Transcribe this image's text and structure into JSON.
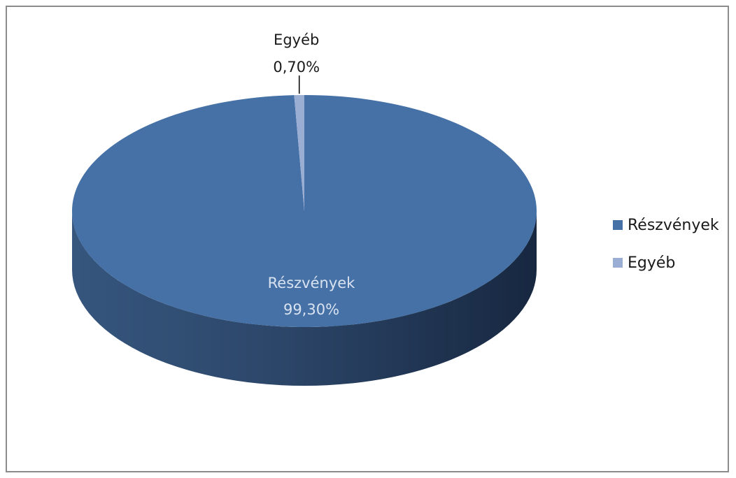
{
  "chart_data": {
    "type": "pie",
    "three_d": true,
    "title": "",
    "slices": [
      {
        "label": "Részvények",
        "value": 99.3,
        "value_text": "99,30%",
        "color": "#4571a6"
      },
      {
        "label": "Egyéb",
        "value": 0.7,
        "value_text": "0,70%",
        "color": "#9aaed4"
      }
    ],
    "legend": {
      "position": "right",
      "items": [
        "Részvények",
        "Egyéb"
      ]
    }
  }
}
